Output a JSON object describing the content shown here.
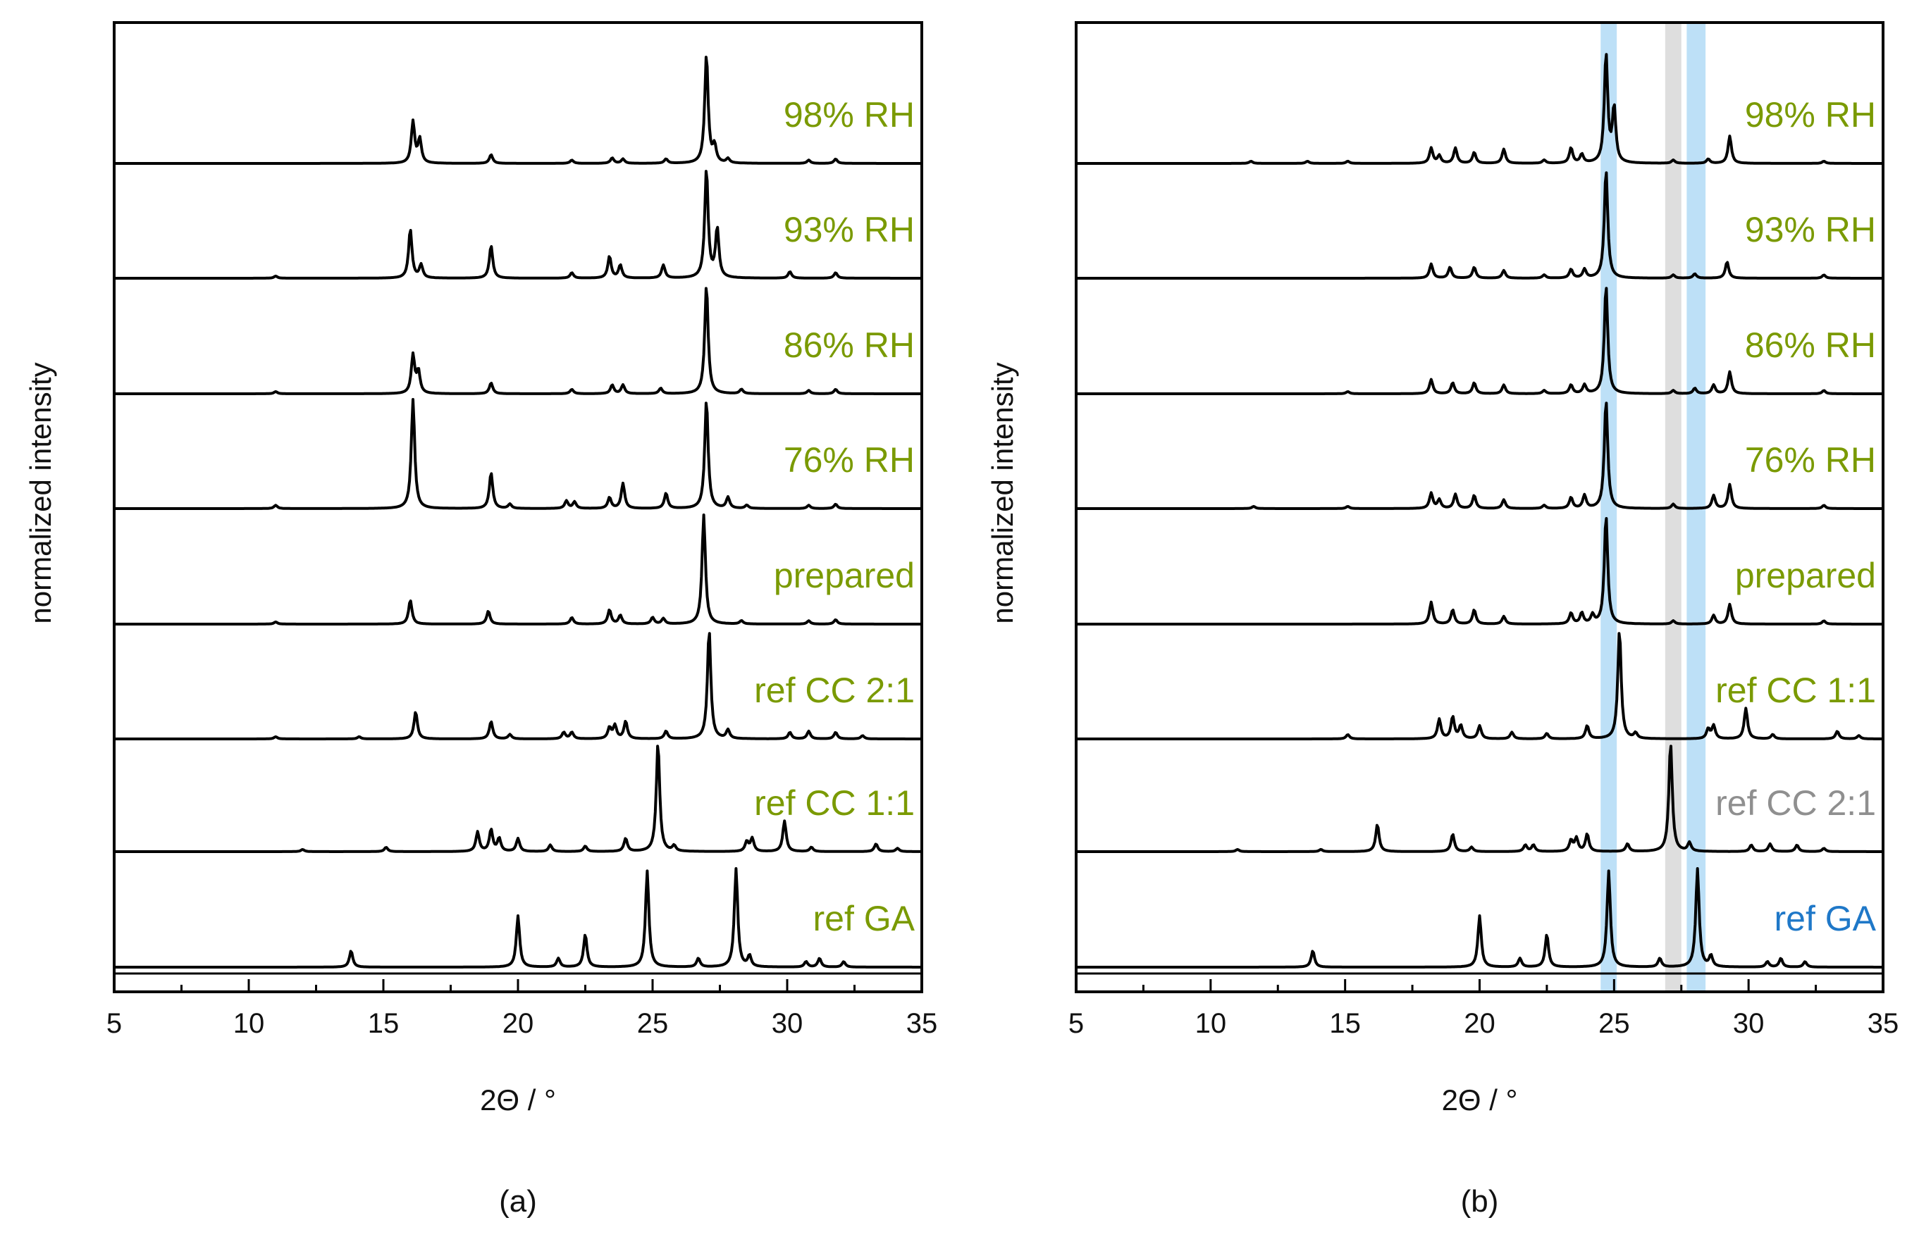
{
  "chart_data": [
    {
      "panel": "(a)",
      "type": "line",
      "subtype": "stacked powder X-ray diffractograms",
      "xlabel": "2Θ / °",
      "ylabel": "normalized intensity",
      "xlim": [
        5,
        35
      ],
      "xticks": [
        "5",
        "10",
        "15",
        "20",
        "25",
        "30",
        "35"
      ],
      "caption": "(a)",
      "highlight_bands": [],
      "series": [
        {
          "name": "98% RH",
          "color": "#7a9a01",
          "peaks": [
            [
              16.1,
              0.38
            ],
            [
              16.35,
              0.22
            ],
            [
              19.0,
              0.08
            ],
            [
              22.0,
              0.03
            ],
            [
              23.5,
              0.05
            ],
            [
              23.9,
              0.04
            ],
            [
              25.5,
              0.04
            ],
            [
              27.0,
              1.0
            ],
            [
              27.3,
              0.15
            ],
            [
              27.8,
              0.04
            ],
            [
              30.8,
              0.03
            ],
            [
              31.8,
              0.04
            ]
          ]
        },
        {
          "name": "93% RH",
          "color": "#7a9a01",
          "peaks": [
            [
              11.0,
              0.02
            ],
            [
              16.0,
              0.45
            ],
            [
              16.4,
              0.12
            ],
            [
              19.0,
              0.3
            ],
            [
              22.0,
              0.05
            ],
            [
              23.4,
              0.2
            ],
            [
              23.8,
              0.12
            ],
            [
              25.4,
              0.12
            ],
            [
              27.0,
              1.0
            ],
            [
              27.4,
              0.45
            ],
            [
              30.1,
              0.06
            ],
            [
              31.8,
              0.05
            ]
          ]
        },
        {
          "name": "86% RH",
          "color": "#7a9a01",
          "peaks": [
            [
              11.0,
              0.02
            ],
            [
              16.1,
              0.35
            ],
            [
              16.3,
              0.2
            ],
            [
              19.0,
              0.1
            ],
            [
              22.0,
              0.04
            ],
            [
              23.5,
              0.08
            ],
            [
              23.9,
              0.08
            ],
            [
              25.3,
              0.05
            ],
            [
              27.0,
              1.0
            ],
            [
              28.3,
              0.04
            ],
            [
              30.8,
              0.03
            ],
            [
              31.8,
              0.04
            ]
          ]
        },
        {
          "name": "76% RH",
          "color": "#7a9a01",
          "peaks": [
            [
              11.0,
              0.03
            ],
            [
              16.1,
              1.0
            ],
            [
              19.0,
              0.33
            ],
            [
              19.7,
              0.04
            ],
            [
              21.8,
              0.07
            ],
            [
              22.1,
              0.06
            ],
            [
              23.4,
              0.1
            ],
            [
              23.9,
              0.23
            ],
            [
              25.5,
              0.14
            ],
            [
              27.0,
              1.0
            ],
            [
              27.8,
              0.1
            ],
            [
              28.5,
              0.03
            ],
            [
              30.8,
              0.03
            ],
            [
              31.8,
              0.04
            ]
          ]
        },
        {
          "name": "prepared",
          "color": "#7a9a01",
          "peaks": [
            [
              11.0,
              0.02
            ],
            [
              16.0,
              0.22
            ],
            [
              18.9,
              0.12
            ],
            [
              22.0,
              0.06
            ],
            [
              23.4,
              0.13
            ],
            [
              23.8,
              0.08
            ],
            [
              25.0,
              0.06
            ],
            [
              25.4,
              0.05
            ],
            [
              26.9,
              1.0
            ],
            [
              28.3,
              0.03
            ],
            [
              30.8,
              0.03
            ],
            [
              31.8,
              0.04
            ]
          ]
        },
        {
          "name": "ref CC 2:1",
          "color": "#7a9a01",
          "peaks": [
            [
              11.0,
              0.02
            ],
            [
              14.1,
              0.02
            ],
            [
              16.2,
              0.25
            ],
            [
              19.0,
              0.16
            ],
            [
              19.7,
              0.04
            ],
            [
              21.7,
              0.06
            ],
            [
              22.0,
              0.06
            ],
            [
              23.4,
              0.1
            ],
            [
              23.6,
              0.12
            ],
            [
              24.0,
              0.16
            ],
            [
              25.5,
              0.07
            ],
            [
              27.1,
              1.0
            ],
            [
              27.8,
              0.08
            ],
            [
              30.1,
              0.06
            ],
            [
              30.8,
              0.07
            ],
            [
              31.8,
              0.06
            ],
            [
              32.8,
              0.03
            ]
          ]
        },
        {
          "name": "ref CC 1:1",
          "color": "#7a9a01",
          "peaks": [
            [
              12.0,
              0.02
            ],
            [
              15.1,
              0.04
            ],
            [
              18.5,
              0.18
            ],
            [
              19.0,
              0.2
            ],
            [
              19.3,
              0.12
            ],
            [
              20.0,
              0.12
            ],
            [
              21.2,
              0.06
            ],
            [
              22.5,
              0.05
            ],
            [
              24.0,
              0.12
            ],
            [
              25.2,
              1.0
            ],
            [
              25.8,
              0.05
            ],
            [
              28.5,
              0.09
            ],
            [
              28.7,
              0.12
            ],
            [
              29.9,
              0.28
            ],
            [
              30.9,
              0.04
            ],
            [
              33.3,
              0.07
            ],
            [
              34.1,
              0.03
            ]
          ]
        },
        {
          "name": "ref GA",
          "color": "#7a9a01",
          "peaks": [
            [
              13.8,
              0.15
            ],
            [
              20.0,
              0.47
            ],
            [
              21.5,
              0.08
            ],
            [
              22.5,
              0.3
            ],
            [
              24.8,
              0.88
            ],
            [
              26.7,
              0.08
            ],
            [
              28.1,
              0.9
            ],
            [
              28.6,
              0.1
            ],
            [
              30.7,
              0.05
            ],
            [
              31.2,
              0.08
            ],
            [
              32.1,
              0.05
            ]
          ]
        }
      ]
    },
    {
      "panel": "(b)",
      "type": "line",
      "subtype": "stacked powder X-ray diffractograms",
      "xlabel": "2Θ / °",
      "ylabel": "normalized intensity",
      "xlim": [
        5,
        35
      ],
      "xticks": [
        "5",
        "10",
        "15",
        "20",
        "25",
        "30",
        "35"
      ],
      "caption": "(b)",
      "highlight_bands": [
        {
          "from": 24.5,
          "to": 25.1,
          "color": "#bde0f7"
        },
        {
          "from": 26.9,
          "to": 27.5,
          "color": "#dedede"
        },
        {
          "from": 27.7,
          "to": 28.4,
          "color": "#bde0f7"
        }
      ],
      "series": [
        {
          "name": "98% RH",
          "color": "#7a9a01",
          "peaks": [
            [
              11.5,
              0.02
            ],
            [
              13.6,
              0.02
            ],
            [
              15.1,
              0.02
            ],
            [
              18.2,
              0.14
            ],
            [
              18.5,
              0.07
            ],
            [
              19.1,
              0.14
            ],
            [
              19.8,
              0.1
            ],
            [
              20.9,
              0.13
            ],
            [
              22.4,
              0.03
            ],
            [
              23.4,
              0.14
            ],
            [
              23.8,
              0.08
            ],
            [
              24.7,
              1.0
            ],
            [
              25.0,
              0.5
            ],
            [
              27.2,
              0.03
            ],
            [
              28.5,
              0.04
            ],
            [
              29.3,
              0.25
            ],
            [
              32.8,
              0.02
            ]
          ]
        },
        {
          "name": "93% RH",
          "color": "#7a9a01",
          "peaks": [
            [
              18.2,
              0.13
            ],
            [
              18.9,
              0.1
            ],
            [
              19.8,
              0.1
            ],
            [
              20.9,
              0.07
            ],
            [
              22.4,
              0.03
            ],
            [
              23.4,
              0.08
            ],
            [
              23.9,
              0.08
            ],
            [
              24.7,
              1.0
            ],
            [
              27.2,
              0.03
            ],
            [
              28.0,
              0.04
            ],
            [
              29.2,
              0.15
            ],
            [
              32.8,
              0.03
            ]
          ]
        },
        {
          "name": "86% RH",
          "color": "#7a9a01",
          "peaks": [
            [
              15.1,
              0.02
            ],
            [
              18.2,
              0.13
            ],
            [
              19.0,
              0.1
            ],
            [
              19.8,
              0.1
            ],
            [
              20.9,
              0.08
            ],
            [
              22.4,
              0.03
            ],
            [
              23.4,
              0.08
            ],
            [
              23.9,
              0.08
            ],
            [
              24.7,
              1.0
            ],
            [
              27.2,
              0.03
            ],
            [
              28.0,
              0.05
            ],
            [
              28.7,
              0.08
            ],
            [
              29.3,
              0.2
            ],
            [
              32.8,
              0.03
            ]
          ]
        },
        {
          "name": "76% RH",
          "color": "#7a9a01",
          "peaks": [
            [
              11.6,
              0.02
            ],
            [
              15.1,
              0.02
            ],
            [
              18.2,
              0.14
            ],
            [
              18.5,
              0.08
            ],
            [
              19.1,
              0.13
            ],
            [
              19.8,
              0.12
            ],
            [
              20.9,
              0.08
            ],
            [
              22.4,
              0.03
            ],
            [
              23.4,
              0.1
            ],
            [
              23.9,
              0.12
            ],
            [
              24.7,
              1.0
            ],
            [
              27.2,
              0.04
            ],
            [
              28.7,
              0.12
            ],
            [
              29.3,
              0.22
            ],
            [
              32.8,
              0.03
            ]
          ]
        },
        {
          "name": "prepared",
          "color": "#7a9a01",
          "peaks": [
            [
              18.2,
              0.2
            ],
            [
              19.0,
              0.13
            ],
            [
              19.8,
              0.13
            ],
            [
              20.9,
              0.07
            ],
            [
              23.4,
              0.1
            ],
            [
              23.8,
              0.1
            ],
            [
              24.2,
              0.08
            ],
            [
              24.7,
              1.0
            ],
            [
              27.2,
              0.03
            ],
            [
              28.7,
              0.08
            ],
            [
              29.3,
              0.18
            ],
            [
              32.8,
              0.03
            ]
          ]
        },
        {
          "name": "ref CC 1:1",
          "color": "#7a9a01",
          "peaks": [
            [
              15.1,
              0.04
            ],
            [
              18.5,
              0.18
            ],
            [
              19.0,
              0.2
            ],
            [
              19.3,
              0.12
            ],
            [
              20.0,
              0.12
            ],
            [
              21.2,
              0.06
            ],
            [
              22.5,
              0.05
            ],
            [
              24.0,
              0.12
            ],
            [
              25.2,
              1.0
            ],
            [
              25.8,
              0.05
            ],
            [
              28.5,
              0.09
            ],
            [
              28.7,
              0.12
            ],
            [
              29.9,
              0.28
            ],
            [
              30.9,
              0.04
            ],
            [
              33.3,
              0.07
            ],
            [
              34.1,
              0.03
            ]
          ]
        },
        {
          "name": "ref CC 2:1",
          "color": "#8f8f8f",
          "peaks": [
            [
              11.0,
              0.02
            ],
            [
              14.1,
              0.02
            ],
            [
              16.2,
              0.25
            ],
            [
              19.0,
              0.16
            ],
            [
              19.7,
              0.04
            ],
            [
              21.7,
              0.06
            ],
            [
              22.0,
              0.06
            ],
            [
              23.4,
              0.1
            ],
            [
              23.6,
              0.12
            ],
            [
              24.0,
              0.16
            ],
            [
              25.5,
              0.07
            ],
            [
              27.1,
              1.0
            ],
            [
              27.8,
              0.08
            ],
            [
              30.1,
              0.06
            ],
            [
              30.8,
              0.07
            ],
            [
              31.8,
              0.06
            ],
            [
              32.8,
              0.03
            ]
          ]
        },
        {
          "name": "ref GA",
          "color": "#1f78c8",
          "peaks": [
            [
              13.8,
              0.15
            ],
            [
              20.0,
              0.47
            ],
            [
              21.5,
              0.08
            ],
            [
              22.5,
              0.3
            ],
            [
              24.8,
              0.88
            ],
            [
              26.7,
              0.08
            ],
            [
              28.1,
              0.9
            ],
            [
              28.6,
              0.1
            ],
            [
              30.7,
              0.05
            ],
            [
              31.2,
              0.08
            ],
            [
              32.1,
              0.05
            ]
          ]
        }
      ]
    }
  ]
}
